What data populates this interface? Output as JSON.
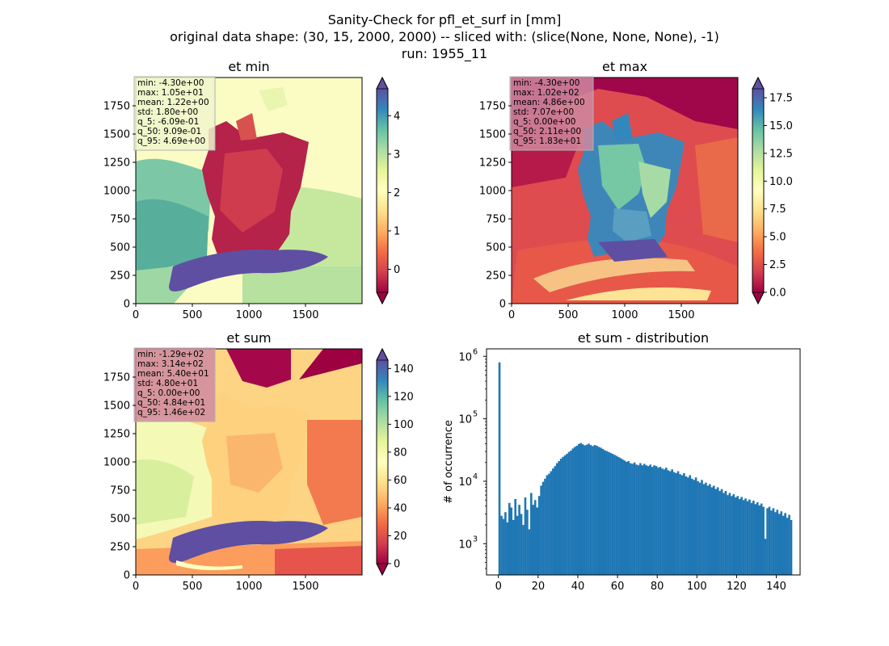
{
  "figure": {
    "title_lines": [
      "Sanity-Check for pfl_et_surf in [mm]",
      "original data shape: (30, 15, 2000, 2000) -- sliced with: (slice(None, None, None), -1)",
      "run: 1955_11"
    ]
  },
  "colormap": {
    "name": "Spectral",
    "stops": [
      "#9e0142",
      "#d53e4f",
      "#f46d43",
      "#fdae61",
      "#fee08b",
      "#ffffbf",
      "#e6f598",
      "#abdda4",
      "#66c2a5",
      "#3288bd",
      "#5e4fa2"
    ]
  },
  "chart_data": [
    {
      "type": "heatmap",
      "title": "et min",
      "xticks": [
        "0",
        "500",
        "1000",
        "1500"
      ],
      "yticks": [
        "0",
        "250",
        "500",
        "750",
        "1000",
        "1250",
        "1500",
        "1750"
      ],
      "xlim": [
        0,
        2000
      ],
      "ylim": [
        0,
        2000
      ],
      "colorbar": {
        "ticks": [
          "0",
          "1",
          "2",
          "3",
          "4"
        ],
        "values": [
          0,
          1,
          2,
          3,
          4
        ],
        "range": [
          -0.6,
          4.7
        ],
        "extend": "both"
      },
      "stats": [
        "min: -4.30e+00",
        "max: 1.05e+01",
        "mean: 1.22e+00",
        "std: 1.80e+00",
        "q_5: -6.09e-01",
        "q_50: 9.09e-01",
        "q_95: 4.69e+00"
      ],
      "stats_box_color": "#eef6cc"
    },
    {
      "type": "heatmap",
      "title": "et max",
      "xticks": [
        "0",
        "500",
        "1000",
        "1500"
      ],
      "yticks": [
        "0",
        "250",
        "500",
        "750",
        "1000",
        "1250",
        "1500",
        "1750"
      ],
      "xlim": [
        0,
        2000
      ],
      "ylim": [
        0,
        2000
      ],
      "colorbar": {
        "ticks": [
          "0.0",
          "2.5",
          "5.0",
          "7.5",
          "10.0",
          "12.5",
          "15.0",
          "17.5"
        ],
        "values": [
          0,
          2.5,
          5,
          7.5,
          10,
          12.5,
          15,
          17.5
        ],
        "range": [
          0,
          18.3
        ],
        "extend": "both"
      },
      "stats": [
        "min: -4.30e+00",
        "max: 1.02e+02",
        "mean: 4.86e+00",
        "std: 7.07e+00",
        "q_5: 0.00e+00",
        "q_50: 2.11e+00",
        "q_95: 1.83e+01"
      ],
      "stats_box_color": "#cf8aa0"
    },
    {
      "type": "heatmap",
      "title": "et sum",
      "xticks": [
        "0",
        "500",
        "1000",
        "1500"
      ],
      "yticks": [
        "0",
        "250",
        "500",
        "750",
        "1000",
        "1250",
        "1500",
        "1750"
      ],
      "xlim": [
        0,
        2000
      ],
      "ylim": [
        0,
        2000
      ],
      "colorbar": {
        "ticks": [
          "0",
          "20",
          "40",
          "60",
          "80",
          "100",
          "120",
          "140"
        ],
        "values": [
          0,
          20,
          40,
          60,
          80,
          100,
          120,
          140
        ],
        "range": [
          0,
          146
        ],
        "extend": "both"
      },
      "stats": [
        "min: -1.29e+02",
        "max: 3.14e+02",
        "mean: 5.40e+01",
        "std: 4.80e+01",
        "q_5: 0.00e+00",
        "q_50: 4.84e+01",
        "q_95: 1.46e+02"
      ],
      "stats_box_color": "#cf8aa0"
    },
    {
      "type": "bar",
      "title": "et sum - distribution",
      "ylabel": "# of occurrence",
      "yscale": "log",
      "xlim": [
        -6,
        152
      ],
      "ylim_exp": [
        2.5,
        6.12
      ],
      "xticks": [
        "0",
        "20",
        "40",
        "60",
        "80",
        "100",
        "120",
        "140"
      ],
      "xtick_values": [
        0,
        20,
        40,
        60,
        80,
        100,
        120,
        140
      ],
      "yticks": [
        {
          "base": "10",
          "exp": "3",
          "value": 3
        },
        {
          "base": "10",
          "exp": "4",
          "value": 4
        },
        {
          "base": "10",
          "exp": "5",
          "value": 5
        },
        {
          "base": "10",
          "exp": "6",
          "value": 6
        }
      ],
      "color": "#1f77b4",
      "bin_start": 0,
      "bin_width": 1,
      "values": [
        800000,
        2800,
        2500,
        3200,
        2200,
        4500,
        3800,
        2400,
        5200,
        2800,
        4200,
        3000,
        2000,
        5500,
        3500,
        1700,
        6500,
        4200,
        5000,
        3800,
        5800,
        8500,
        9800,
        11000,
        12500,
        13200,
        14500,
        16000,
        17500,
        19500,
        21000,
        23000,
        24500,
        26000,
        27500,
        29500,
        31000,
        33500,
        35500,
        37000,
        39500,
        41000,
        39000,
        37500,
        38500,
        40000,
        38000,
        36500,
        38000,
        37000,
        35500,
        34500,
        33000,
        31500,
        30500,
        29500,
        28500,
        27500,
        26500,
        25500,
        24500,
        23500,
        22500,
        21500,
        20500,
        21000,
        19500,
        19000,
        20000,
        18500,
        18000,
        19500,
        18000,
        19000,
        18000,
        17500,
        18500,
        17000,
        18000,
        17500,
        16500,
        17000,
        16000,
        15500,
        16500,
        15000,
        14500,
        15500,
        14000,
        13500,
        14500,
        13000,
        12500,
        13500,
        12000,
        11500,
        12500,
        11000,
        10500,
        11500,
        10000,
        9500,
        10500,
        9000,
        9500,
        8500,
        9000,
        8000,
        8500,
        7500,
        8000,
        7000,
        7500,
        6500,
        7000,
        6000,
        6500,
        5800,
        6200,
        5500,
        5800,
        5200,
        5600,
        5000,
        5300,
        4800,
        5100,
        4500,
        4900,
        4300,
        4600,
        4100,
        4400,
        3900,
        1200,
        3700,
        3900,
        3400,
        3700,
        3200,
        3500,
        3000,
        3300,
        2800,
        3100,
        2600,
        2900,
        2400
      ]
    }
  ]
}
